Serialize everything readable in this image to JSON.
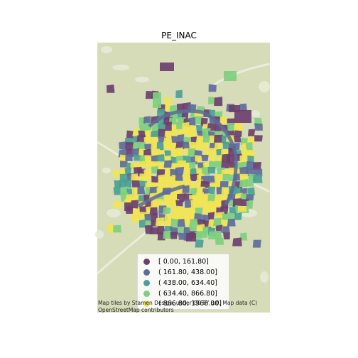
{
  "title": "PE_INAC",
  "colors": {
    "background_map": "#d6dcb8",
    "class_1": "#6b3f6e",
    "class_2": "#5e6b9a",
    "class_3": "#4c9e96",
    "class_4": "#7ecf7e",
    "class_5": "#f2e44f"
  },
  "legend": {
    "items": [
      {
        "label": "[   0.00,  161.80]",
        "color": "#6b3f6e"
      },
      {
        "label": "( 161.80,  438.00]",
        "color": "#5e6b9a"
      },
      {
        "label": "( 438.00,  634.40]",
        "color": "#4c9e96"
      },
      {
        "label": "( 634.40,  866.80]",
        "color": "#7ecf7e"
      },
      {
        "label": "( 866.80, 1966.00]",
        "color": "#f2e44f"
      }
    ]
  },
  "attribution": "Map tiles by Stamen Design, under CC BY 3.0. Map data (C)\nOpenStreetMap contributors"
}
